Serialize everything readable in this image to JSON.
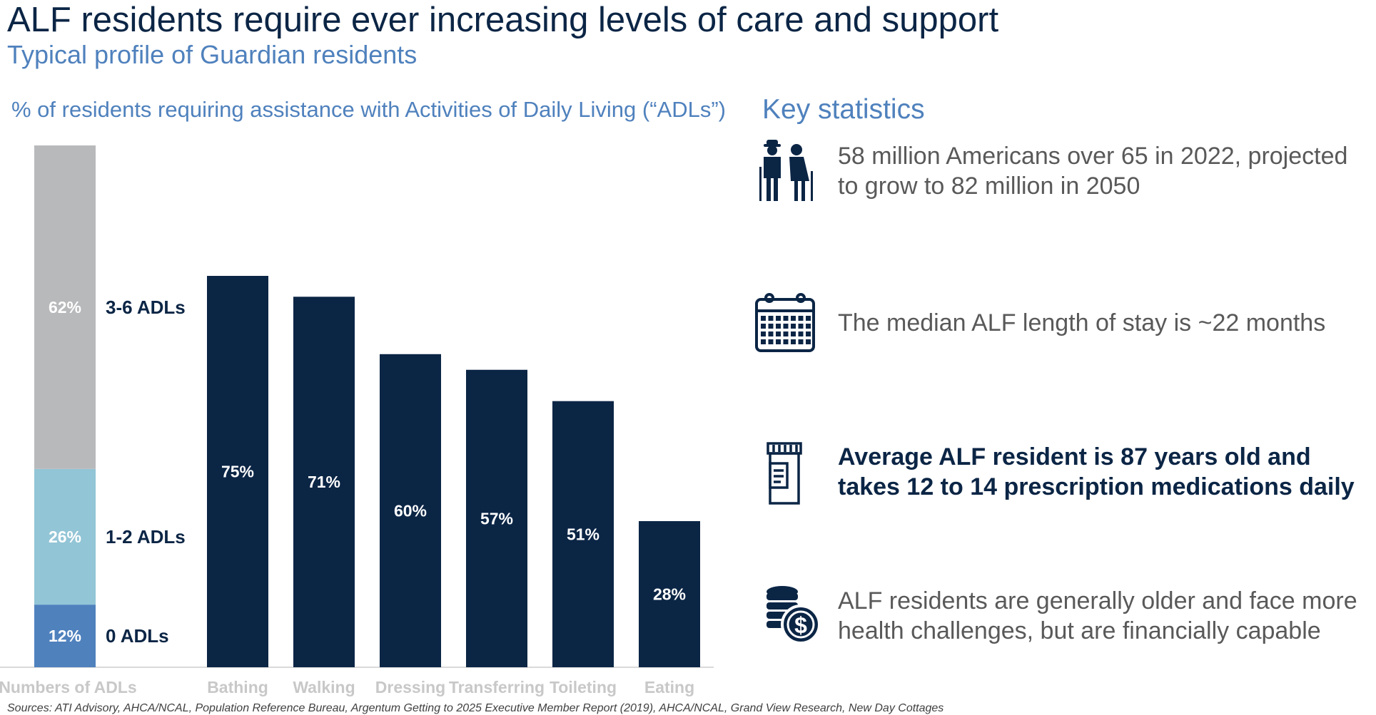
{
  "title": "ALF residents require ever increasing levels of care and support",
  "subtitle": "Typical profile of Guardian residents",
  "chart_heading": "% of residents requiring assistance with Activities of Daily Living (“ADLs”)",
  "chart_data": {
    "type": "bar",
    "title": "% of residents requiring assistance with Activities of Daily Living (“ADLs”)",
    "ylim": [
      0,
      100
    ],
    "stacked_bar": {
      "category": "Numbers of ADLs",
      "segments": [
        {
          "label": "0 ADLs",
          "value": 12,
          "value_label": "12%",
          "color": "#4f81bd"
        },
        {
          "label": "1-2 ADLs",
          "value": 26,
          "value_label": "26%",
          "color": "#92c5d6"
        },
        {
          "label": "3-6 ADLs",
          "value": 62,
          "value_label": "62%",
          "color": "#b8b9bb"
        }
      ]
    },
    "categories": [
      "Bathing",
      "Walking",
      "Dressing",
      "Transferring",
      "Toileting",
      "Eating"
    ],
    "values": [
      75,
      71,
      60,
      57,
      51,
      28
    ],
    "value_labels": [
      "75%",
      "71%",
      "60%",
      "57%",
      "51%",
      "28%"
    ],
    "bar_color": "#0b2545"
  },
  "key_statistics": {
    "heading": "Key statistics",
    "items": [
      {
        "icon": "elderly-couple-icon",
        "text": "58 million Americans over 65 in 2022, projected to grow to 82 million in 2050",
        "bold": false
      },
      {
        "icon": "calendar-icon",
        "text": "The median ALF length of stay is ~22 months",
        "bold": false
      },
      {
        "icon": "prescription-bottle-icon",
        "text": "Average ALF resident is 87 years old and takes 12 to 14 prescription medications daily",
        "bold": true
      },
      {
        "icon": "coins-dollar-icon",
        "text": "ALF residents are generally older and face more health challenges, but are financially capable",
        "bold": false
      }
    ]
  },
  "sources": "Sources: ATI Advisory, AHCA/NCAL, Population Reference Bureau, Argentum Getting to 2025 Executive Member Report (2019), AHCA/NCAL, Grand View Research, New Day Cottages"
}
